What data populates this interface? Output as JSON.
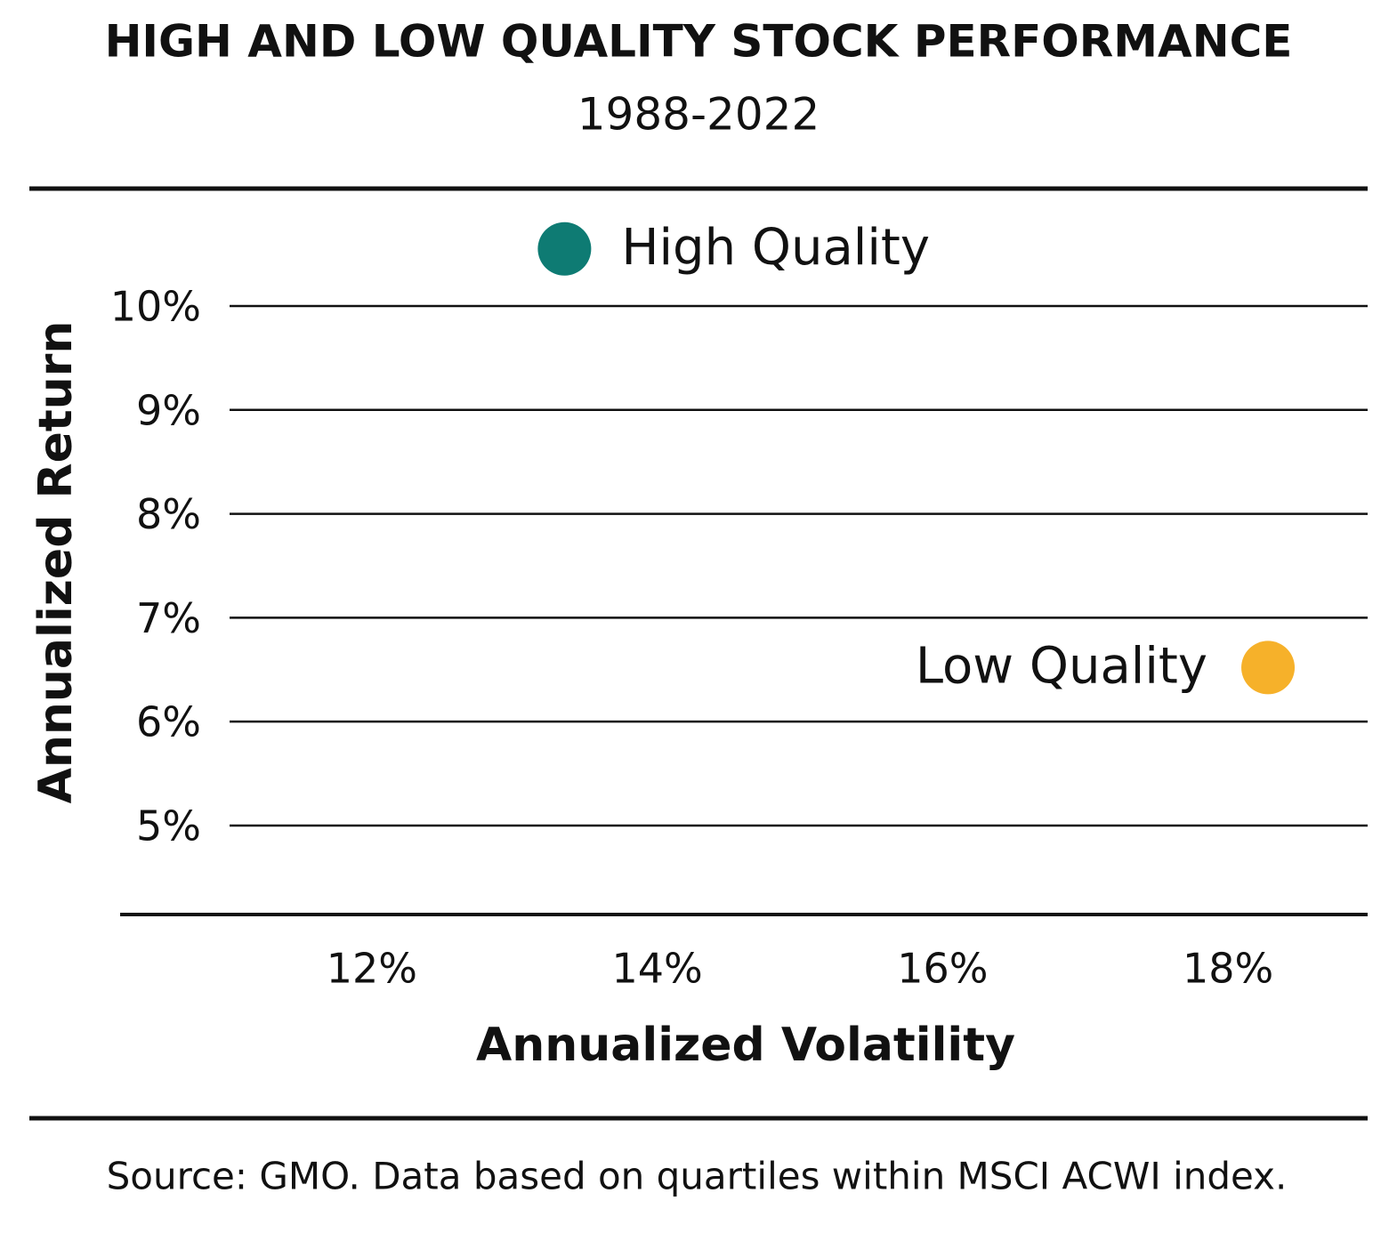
{
  "chart_data": {
    "type": "scatter",
    "title": "HIGH AND LOW QUALITY STOCK PERFORMANCE",
    "subtitle": "1988-2022",
    "x_label": "Annualized Volatility",
    "y_label": "Annualized Return",
    "source": "Source: GMO. Data based on quartiles within MSCI ACWI index.",
    "series": [
      {
        "name": "High Quality",
        "color": "#0e7b73",
        "x": [
          13.35
        ],
        "values": [
          10.55
        ]
      },
      {
        "name": "Low Quality",
        "color": "#f6b12a",
        "x": [
          18.28
        ],
        "values": [
          6.52
        ]
      }
    ],
    "xlim": [
      11,
      19
    ],
    "xticks": [
      {
        "value": 12,
        "label": "12%"
      },
      {
        "value": 14,
        "label": "14%"
      },
      {
        "value": 16,
        "label": "16%"
      },
      {
        "value": 18,
        "label": "18%"
      }
    ],
    "ylim": [
      4.2,
      10.6
    ],
    "yticks": [
      {
        "value": 5,
        "label": "5%"
      },
      {
        "value": 6,
        "label": "6%"
      },
      {
        "value": 7,
        "label": "7%"
      },
      {
        "value": 8,
        "label": "8%"
      },
      {
        "value": 9,
        "label": "9%"
      },
      {
        "value": 10,
        "label": "10%"
      }
    ],
    "grid": true
  }
}
